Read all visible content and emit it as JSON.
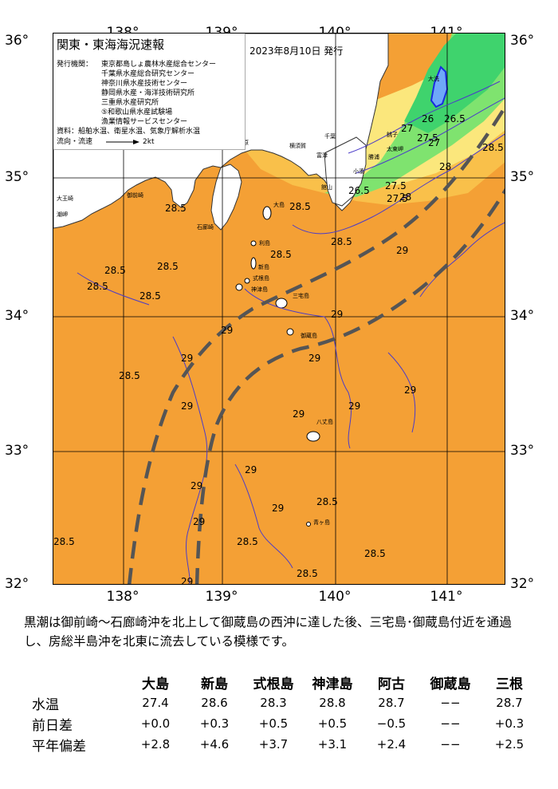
{
  "title": "関東・東海海況速報",
  "date": "2023年8月10日 発行",
  "legend": {
    "issuers_label": "発行機関：",
    "issuers": [
      "東京都島しょ農林水産総合センター",
      "千葉県水産総合研究センター",
      "神奈川県水産技術センター",
      "静岡県水産・海洋技術研究所",
      "三重県水産研究所",
      "⑤和歌山県水産試験場",
      "漁業情報サービスセンター"
    ],
    "sources": "資料：船舶水温、衛星水温、気象庁解析水温",
    "flow_label": "流向・流速",
    "flow_scale": "2kt"
  },
  "axes": {
    "lon_labels": [
      "138°",
      "139°",
      "140°",
      "141°"
    ],
    "lat_labels": [
      "36°",
      "35°",
      "34°",
      "33°",
      "32°"
    ],
    "lon_range": [
      137.5,
      141.5
    ],
    "lat_range": [
      32,
      36
    ]
  },
  "colors": {
    "sea_warm": "#f4a035",
    "sea_mid": "#f9c04a",
    "sea_cool": "#fbe77c",
    "sea_cold": "#7fe36f",
    "sea_coldest": "#3fd36d",
    "land": "#ffffff",
    "contour": "#4b3cc8",
    "kuroshio_axis": "#555555"
  },
  "isotherm_labels": [
    "28.5",
    "28.5",
    "28.5",
    "28.5",
    "28.5",
    "28.5",
    "28.5",
    "28.5",
    "28.5",
    "28.5",
    "28.5",
    "28.5",
    "28.5",
    "28.5",
    "29",
    "29",
    "29",
    "29",
    "29",
    "29",
    "29",
    "29",
    "29",
    "29",
    "29",
    "29",
    "29",
    "29",
    "27.5",
    "27.5",
    "28",
    "28",
    "26",
    "26.5",
    "26.5",
    "27",
    "27",
    "27.5",
    "28.5"
  ],
  "places": [
    "大島",
    "利島",
    "新島",
    "式根島",
    "神津島",
    "三宅島",
    "御蔵島",
    "八丈島",
    "青ヶ島",
    "大王崎",
    "潮岬",
    "石廊崎",
    "勝浦",
    "銚子",
    "大洗",
    "太東岬",
    "小湊",
    "館山",
    "小田原",
    "横須賀",
    "千葉",
    "富津",
    "御前崎"
  ],
  "description": "黒潮は御前崎～石廊崎沖を北上して御蔵島の西沖に達した後、三宅島･御蔵島付近を通過し、房総半島沖を北東に流去している模様です。",
  "table": {
    "columns": [
      "大島",
      "新島",
      "式根島",
      "神津島",
      "阿古",
      "御蔵島",
      "三根"
    ],
    "rows": [
      {
        "label": "水温",
        "values": [
          "27.4",
          "28.6",
          "28.3",
          "28.8",
          "28.7",
          "−−",
          "28.7"
        ]
      },
      {
        "label": "前日差",
        "values": [
          "+0.0",
          "+0.3",
          "+0.5",
          "+0.5",
          "−0.5",
          "−−",
          "+0.3"
        ]
      },
      {
        "label": "平年偏差",
        "values": [
          "+2.8",
          "+4.6",
          "+3.7",
          "+3.1",
          "+2.4",
          "−−",
          "+2.5"
        ]
      }
    ]
  }
}
